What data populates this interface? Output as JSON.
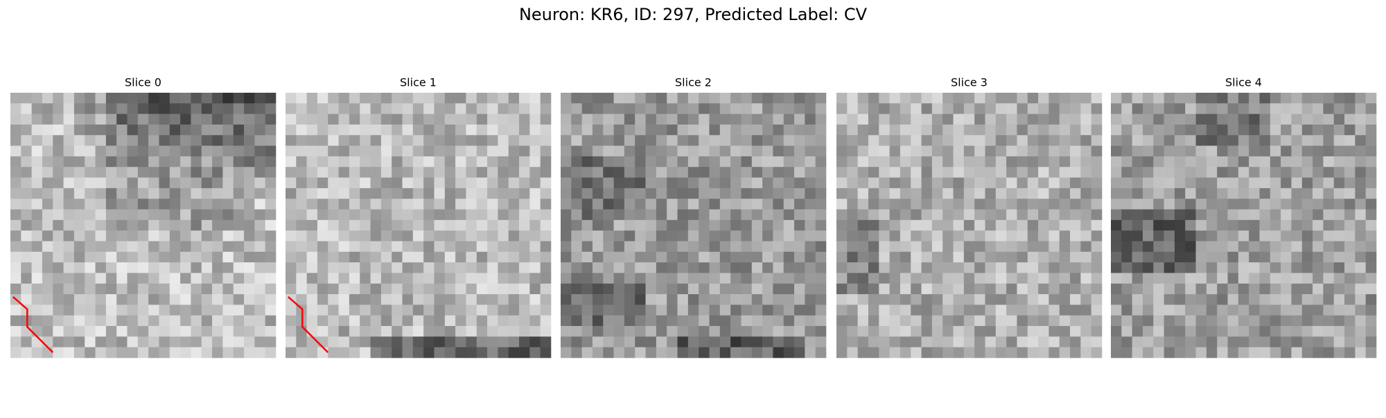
{
  "title": "Neuron: KR6, ID: 297, Predicted Label: CV",
  "panels": [
    {
      "title": "Slice 0"
    },
    {
      "title": "Slice 1"
    },
    {
      "title": "Slice 2"
    },
    {
      "title": "Slice 3"
    },
    {
      "title": "Slice 4"
    }
  ]
}
